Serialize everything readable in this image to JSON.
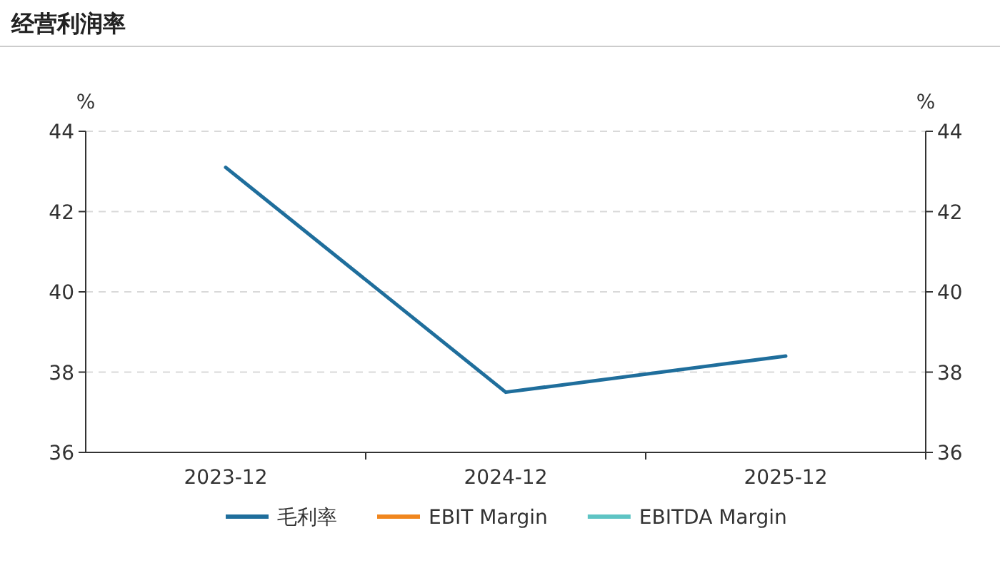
{
  "chart_data": {
    "type": "line",
    "title": "经营利润率",
    "categories": [
      "2023-12",
      "2024-12",
      "2025-12"
    ],
    "series": [
      {
        "name": "毛利率",
        "color": "#1f6e9c",
        "values": [
          43.1,
          37.5,
          38.4
        ]
      },
      {
        "name": "EBIT Margin",
        "color": "#f0861e",
        "values": [
          null,
          null,
          null
        ]
      },
      {
        "name": "EBITDA Margin",
        "color": "#5ec4c4",
        "values": [
          null,
          null,
          null
        ]
      }
    ],
    "ylabel": "%",
    "y2label": "%",
    "ylim": [
      36,
      44
    ],
    "yticks": [
      36,
      38,
      40,
      42,
      44
    ],
    "y2lim": [
      36,
      44
    ],
    "y2ticks": [
      36,
      38,
      40,
      42,
      44
    ],
    "grid": "y",
    "legend": "bottom",
    "marker": "none",
    "line_style": "solid"
  }
}
